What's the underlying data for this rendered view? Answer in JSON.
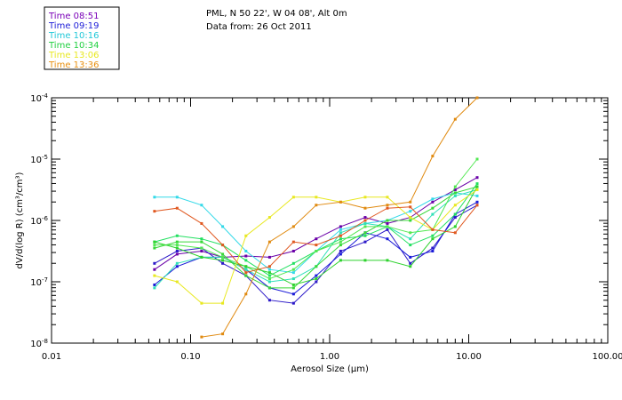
{
  "chart_data": {
    "type": "line",
    "title": "PML, N 50 22', W 04 08', Alt 0m",
    "subtitle": "Data from: 26 Oct 2011",
    "xlabel": "Aerosol Size (µm)",
    "ylabel": "dV/d(log R)  (cm³/cm³)",
    "xscale": "log",
    "yscale": "log",
    "xlim": [
      0.01,
      100
    ],
    "ylim_exp": [
      -8,
      -4
    ],
    "xticks": [
      {
        "v": 0.01,
        "label": "0.01"
      },
      {
        "v": 0.1,
        "label": "0.10"
      },
      {
        "v": 1,
        "label": "1.00"
      },
      {
        "v": 10,
        "label": "10.00"
      },
      {
        "v": 100,
        "label": "100.00"
      }
    ],
    "yticks": [
      {
        "e": -8,
        "label": "10",
        "sup": "-8"
      },
      {
        "e": -7,
        "label": "10",
        "sup": "-7"
      },
      {
        "e": -6,
        "label": "10",
        "sup": "-6"
      },
      {
        "e": -5,
        "label": "10",
        "sup": "-5"
      },
      {
        "e": -4,
        "label": "10",
        "sup": "-4"
      }
    ],
    "legend_position": "top-left, outside plot",
    "series": [
      {
        "name": "Time 08:51",
        "color": "#6a00a8",
        "x": [
          0.055,
          0.08,
          0.12,
          0.17,
          0.25,
          0.37,
          0.55,
          0.8,
          1.2,
          1.8,
          2.6,
          3.8,
          5.5,
          8,
          11.5
        ],
        "y_exp": [
          -6.8,
          -6.55,
          -6.5,
          -6.6,
          -6.58,
          -6.6,
          -6.5,
          -6.3,
          -6.1,
          -5.95,
          -6.05,
          -5.95,
          -5.7,
          -5.5,
          -5.3
        ]
      },
      {
        "name": "Time 08:51",
        "color": "#2b18c8",
        "x": [
          0.055,
          0.08,
          0.12,
          0.17,
          0.25,
          0.37,
          0.55,
          0.8,
          1.2,
          1.8,
          2.6,
          3.8,
          5.5,
          8,
          11.5
        ],
        "y_exp": [
          -6.7,
          -6.5,
          -6.45,
          -6.7,
          -6.9,
          -7.3,
          -7.35,
          -7.0,
          -6.5,
          -6.35,
          -6.15,
          -6.7,
          -6.45,
          -5.95,
          -5.75
        ]
      },
      {
        "name": "Time 09:19",
        "color": "#1a1ad8",
        "x": [
          0.055,
          0.08,
          0.12,
          0.17,
          0.25,
          0.37,
          0.55,
          0.8,
          1.2,
          1.8,
          2.6,
          3.8,
          5.5,
          8,
          11.5
        ],
        "y_exp": [
          -7.05,
          -6.75,
          -6.6,
          -6.6,
          -6.8,
          -7.1,
          -7.2,
          -6.9,
          -6.55,
          -6.2,
          -6.3,
          -6.6,
          -6.5,
          -5.9,
          -5.7
        ]
      },
      {
        "name": "Time 10:16",
        "color": "#33d9e8",
        "x": [
          0.055,
          0.08,
          0.12,
          0.17,
          0.25,
          0.37,
          0.55,
          0.8,
          1.2,
          1.8,
          2.6,
          3.8,
          5.5,
          8,
          11.5
        ],
        "y_exp": [
          -5.62,
          -5.62,
          -5.75,
          -6.1,
          -6.5,
          -6.8,
          -6.85,
          -6.5,
          -6.15,
          -6.05,
          -6.0,
          -5.85,
          -5.65,
          -5.55,
          -5.6
        ]
      },
      {
        "name": "Time 10:16",
        "color": "#30e0b8",
        "x": [
          0.055,
          0.08,
          0.12,
          0.17,
          0.25,
          0.37,
          0.55,
          0.8,
          1.2,
          1.8,
          2.6,
          3.8,
          5.5,
          8,
          11.5
        ],
        "y_exp": [
          -7.1,
          -6.7,
          -6.6,
          -6.6,
          -6.8,
          -7.0,
          -6.95,
          -6.75,
          -6.2,
          -6.05,
          -6.1,
          -6.3,
          -5.9,
          -5.6,
          -5.5
        ]
      },
      {
        "name": "Time 10:34",
        "color": "#22e060",
        "x": [
          0.055,
          0.08,
          0.12,
          0.17,
          0.25,
          0.37,
          0.55,
          0.8,
          1.2,
          1.8,
          2.6,
          3.8,
          5.5,
          8,
          11.5
        ],
        "y_exp": [
          -6.35,
          -6.25,
          -6.3,
          -6.4,
          -6.65,
          -6.9,
          -6.7,
          -6.5,
          -6.3,
          -6.25,
          -6.1,
          -6.4,
          -6.25,
          -5.9,
          -5.4
        ]
      },
      {
        "name": "Time 10:34",
        "color": "#38d838",
        "x": [
          0.055,
          0.08,
          0.12,
          0.17,
          0.25,
          0.37,
          0.55,
          0.8,
          1.2,
          1.8,
          2.6,
          3.8,
          5.5,
          8,
          11.5
        ],
        "y_exp": [
          -6.45,
          -6.35,
          -6.35,
          -6.55,
          -6.9,
          -7.1,
          -7.1,
          -6.75,
          -6.4,
          -6.2,
          -6.0,
          -6.0,
          -5.8,
          -5.55,
          -5.45
        ]
      },
      {
        "name": "Time 10:34",
        "color": "#52e852",
        "x": [
          0.055,
          0.08,
          0.12,
          0.17,
          0.25,
          0.37,
          0.55,
          0.8,
          1.2,
          1.8,
          2.6,
          3.8,
          5.5,
          8,
          11.5
        ],
        "y_exp": [
          -6.4,
          -6.4,
          -6.45,
          -6.6,
          -6.75,
          -6.95,
          -6.8,
          -6.5,
          -6.35,
          -6.1,
          -6.1,
          -6.2,
          -6.15,
          -5.45,
          -5.0
        ]
      },
      {
        "name": "Time 10:34",
        "color": "#2ed22e",
        "x": [
          0.055,
          0.08,
          0.12,
          0.17,
          0.25,
          0.37,
          0.55,
          0.8,
          1.2,
          1.8,
          2.6,
          3.8,
          5.5,
          8,
          11.5
        ],
        "y_exp": [
          -6.35,
          -6.45,
          -6.6,
          -6.65,
          -6.75,
          -6.85,
          -7.05,
          -6.95,
          -6.65,
          -6.65,
          -6.65,
          -6.75,
          -6.3,
          -6.1,
          -5.45
        ]
      },
      {
        "name": "Time 13:06",
        "color": "#e8e820",
        "x": [
          0.055,
          0.08,
          0.12,
          0.17,
          0.25,
          0.37,
          0.55,
          0.8,
          1.2,
          1.8,
          2.6,
          3.8,
          5.5,
          8,
          11.5
        ],
        "y_exp": [
          -6.9,
          -7.0,
          -7.35,
          -7.35,
          -6.25,
          -5.95,
          -5.62,
          -5.62,
          -5.7,
          -5.62,
          -5.62,
          -5.95,
          -6.15,
          -5.75,
          -5.5
        ]
      },
      {
        "name": "Time 13:36",
        "color": "#e08a10",
        "x": [
          0.12,
          0.17,
          0.25,
          0.37,
          0.55,
          0.8,
          1.2,
          1.8,
          2.6,
          3.8,
          5.5,
          8,
          11.5
        ],
        "y_exp": [
          -7.9,
          -7.85,
          -7.2,
          -6.35,
          -6.1,
          -5.75,
          -5.7,
          -5.8,
          -5.75,
          -5.7,
          -4.95,
          -4.35,
          -4.0
        ]
      },
      {
        "name": "Time 13:36",
        "color": "#e05820",
        "x": [
          0.055,
          0.08,
          0.12,
          0.17,
          0.25,
          0.37,
          0.55,
          0.8,
          1.2,
          1.8,
          2.6,
          3.8,
          5.5,
          8,
          11.5
        ],
        "y_exp": [
          -5.85,
          -5.8,
          -6.05,
          -6.4,
          -6.85,
          -6.75,
          -6.35,
          -6.4,
          -6.25,
          -6.0,
          -5.8,
          -5.78,
          -6.15,
          -6.2,
          -5.75
        ]
      }
    ],
    "legend_entries": [
      {
        "label": "Time 08:51",
        "color": "#7a00b8"
      },
      {
        "label": "Time 09:19",
        "color": "#2020d8"
      },
      {
        "label": "Time 10:16",
        "color": "#20c8d8"
      },
      {
        "label": "Time 10:34",
        "color": "#20d040"
      },
      {
        "label": "Time 13:06",
        "color": "#e8e820"
      },
      {
        "label": "Time 13:36",
        "color": "#e89010"
      }
    ]
  }
}
